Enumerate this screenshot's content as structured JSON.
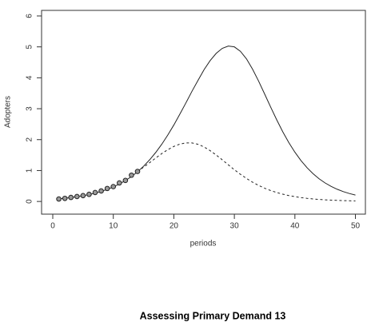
{
  "chart_data": {
    "type": "line",
    "x_label": "periods",
    "y_label": "Adopters",
    "x": [
      1,
      2,
      3,
      4,
      5,
      6,
      7,
      8,
      9,
      10,
      11,
      12,
      13,
      14,
      15,
      16,
      17,
      18,
      19,
      20,
      21,
      22,
      23,
      24,
      25,
      26,
      27,
      28,
      29,
      30,
      31,
      32,
      33,
      34,
      35,
      36,
      37,
      38,
      39,
      40,
      41,
      42,
      43,
      44,
      45,
      46,
      47,
      48,
      49,
      50
    ],
    "series": [
      {
        "style": "solid",
        "color": "#222222",
        "values": [
          0.087,
          0.105,
          0.127,
          0.154,
          0.186,
          0.224,
          0.27,
          0.326,
          0.392,
          0.471,
          0.565,
          0.676,
          0.807,
          0.96,
          1.139,
          1.347,
          1.583,
          1.849,
          2.148,
          2.473,
          2.827,
          3.19,
          3.565,
          3.918,
          4.264,
          4.557,
          4.79,
          4.952,
          5.026,
          5.0,
          4.857,
          4.612,
          4.281,
          3.894,
          3.476,
          3.051,
          2.639,
          2.253,
          1.904,
          1.594,
          1.324,
          1.094,
          0.898,
          0.734,
          0.598,
          0.486,
          0.394,
          0.318,
          0.257,
          0.207
        ]
      },
      {
        "style": "dashed",
        "color": "#222222",
        "values": [
          null,
          null,
          null,
          null,
          null,
          null,
          null,
          null,
          null,
          null,
          null,
          null,
          null,
          0.964,
          1.108,
          1.254,
          1.404,
          1.547,
          1.675,
          1.78,
          1.856,
          1.895,
          1.894,
          1.849,
          1.763,
          1.643,
          1.503,
          1.347,
          1.185,
          1.027,
          0.879,
          0.745,
          0.624,
          0.519,
          0.429,
          0.353,
          0.289,
          0.235,
          0.191,
          0.155,
          0.125,
          0.101,
          0.082,
          0.066,
          0.053,
          0.043,
          0.034,
          0.028,
          0.022,
          0.018
        ]
      },
      {
        "style": "points",
        "color": "#222222",
        "values": [
          0.08,
          0.1,
          0.13,
          0.16,
          0.19,
          0.23,
          0.29,
          0.34,
          0.42,
          0.48,
          0.6,
          0.68,
          0.85,
          0.97,
          null,
          null,
          null,
          null,
          null,
          null,
          null,
          null,
          null,
          null,
          null,
          null,
          null,
          null,
          null,
          null,
          null,
          null,
          null,
          null,
          null,
          null,
          null,
          null,
          null,
          null,
          null,
          null,
          null,
          null,
          null,
          null,
          null,
          null,
          null,
          null
        ]
      }
    ],
    "xlim": [
      -1.85,
      51.65
    ],
    "xticks": [
      0,
      10,
      20,
      30,
      40,
      50
    ],
    "ylim": [
      -0.41,
      6.18
    ],
    "yticks": [
      0,
      1,
      2,
      3,
      4,
      5,
      6
    ]
  },
  "footer": {
    "text": "Assessing Primary Demand 13"
  }
}
